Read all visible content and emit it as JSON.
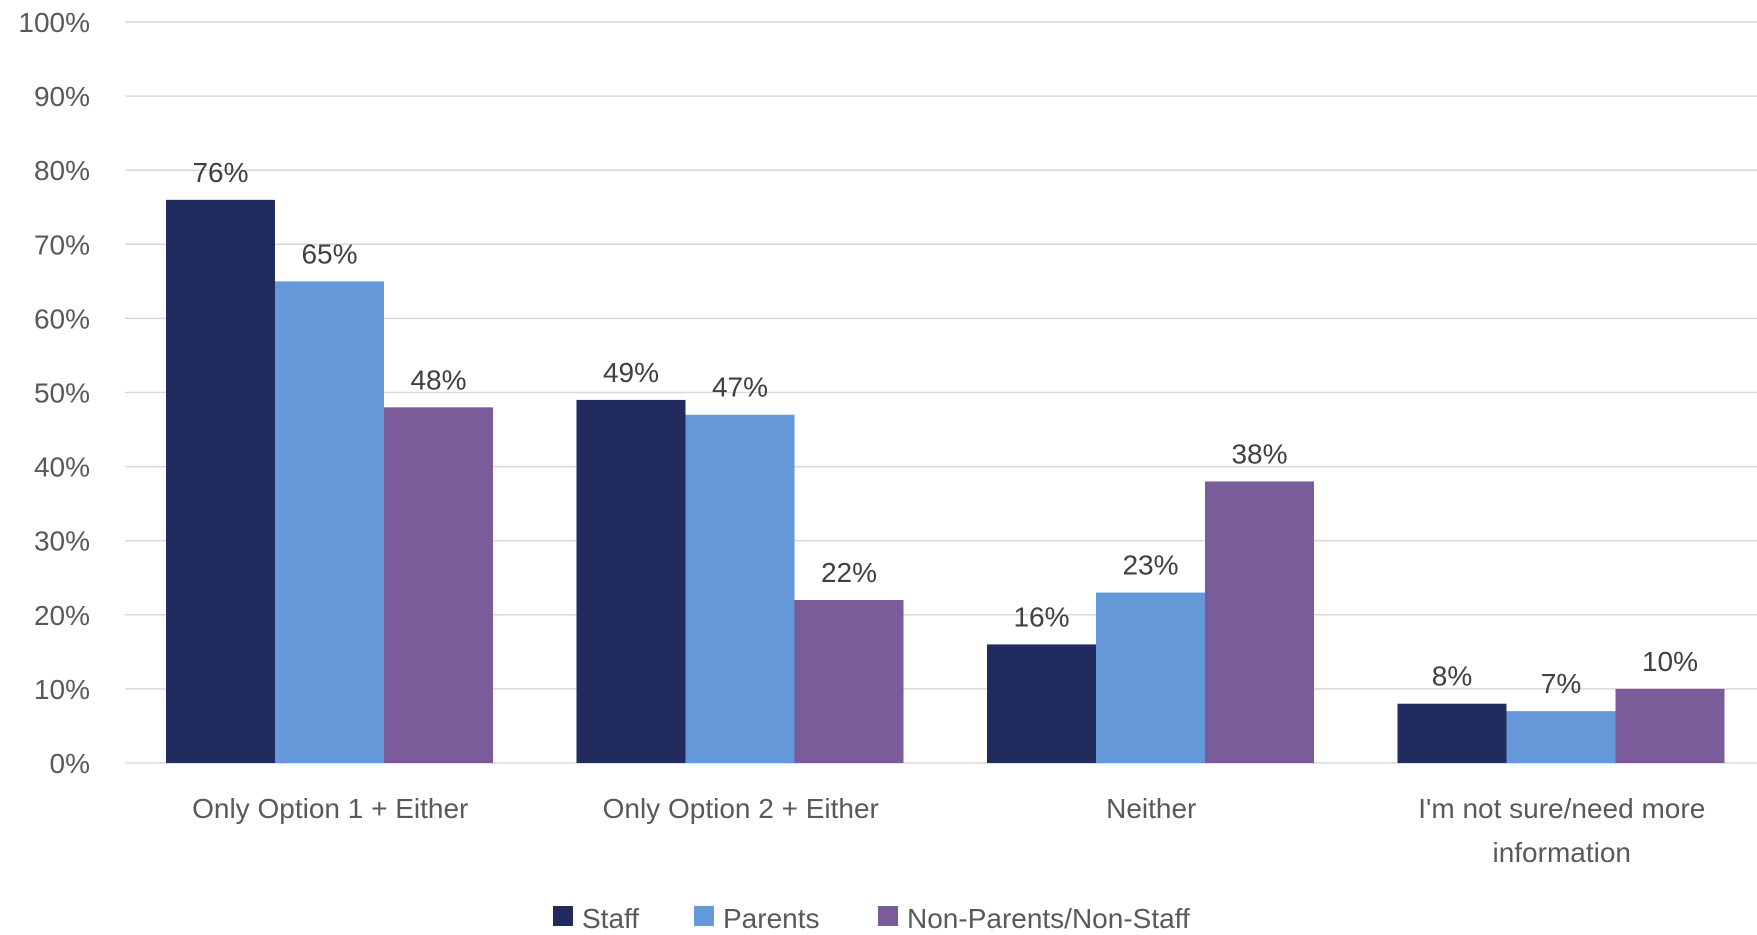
{
  "chart_data": {
    "type": "bar",
    "categories": [
      "Only Option 1 + Either",
      "Only Option 2 + Either",
      "Neither",
      "I'm not sure/need more information"
    ],
    "category_lines": [
      [
        "Only Option 1 + Either"
      ],
      [
        "Only Option 2 + Either"
      ],
      [
        "Neither"
      ],
      [
        "I'm not sure/need more",
        "information"
      ]
    ],
    "series": [
      {
        "name": "Staff",
        "color": "#212B5E",
        "values": [
          76,
          49,
          16,
          8
        ]
      },
      {
        "name": "Parents",
        "color": "#6699D9",
        "values": [
          65,
          47,
          23,
          7
        ]
      },
      {
        "name": "Non-Parents/Non-Staff",
        "color": "#7B5C9A",
        "values": [
          48,
          22,
          38,
          10
        ]
      }
    ],
    "data_labels": [
      [
        "76%",
        "49%",
        "16%",
        "8%"
      ],
      [
        "65%",
        "47%",
        "23%",
        "7%"
      ],
      [
        "48%",
        "22%",
        "38%",
        "10%"
      ]
    ],
    "y_ticks": [
      "0%",
      "10%",
      "20%",
      "30%",
      "40%",
      "50%",
      "60%",
      "70%",
      "80%",
      "90%",
      "100%"
    ],
    "ylim": [
      0,
      100
    ],
    "grid": true,
    "legend_position": "bottom",
    "title": "",
    "xlabel": "",
    "ylabel": ""
  }
}
